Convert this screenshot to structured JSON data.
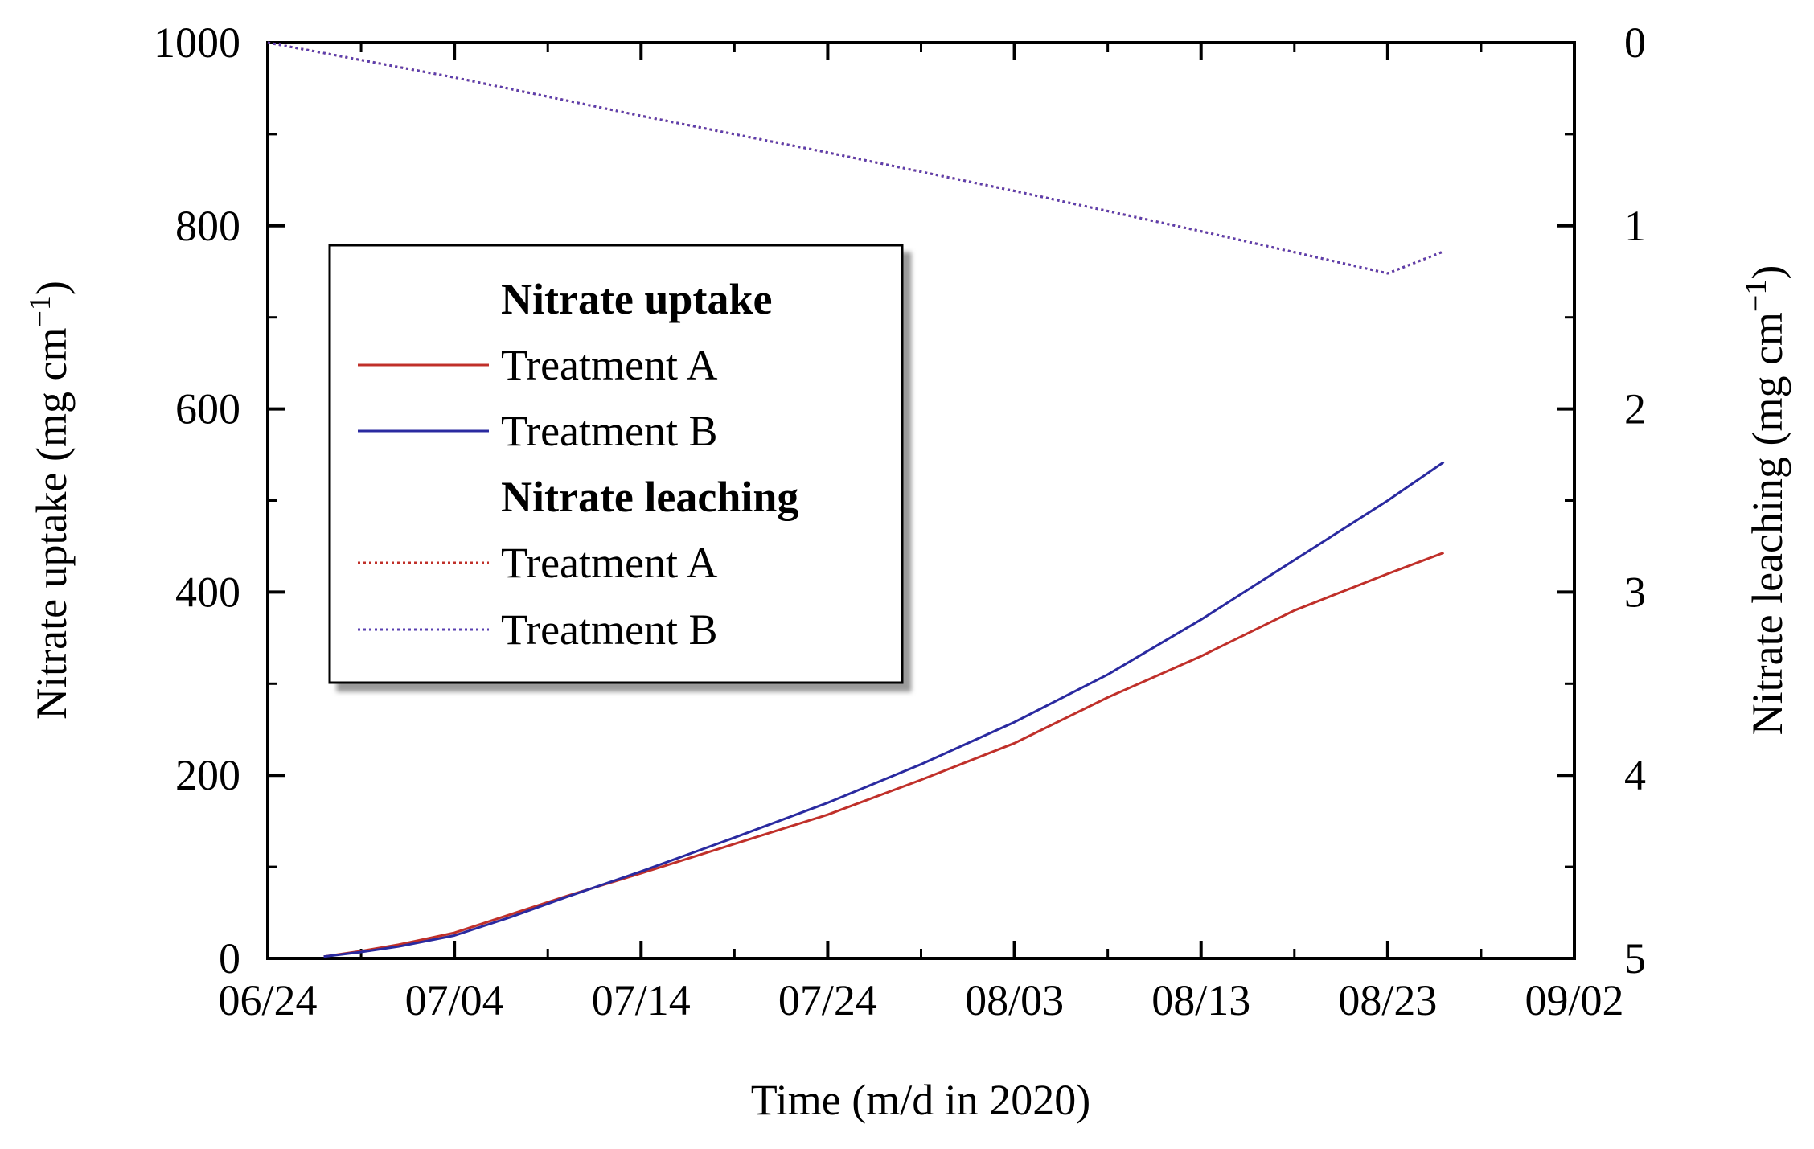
{
  "chart_data": {
    "type": "line",
    "xlabel": "Time (m/d in 2020)",
    "ylabel_left": "Nitrate uptake (mg cm",
    "ylabel_left_sup": "−1",
    "ylabel_left_close": ")",
    "ylabel_right": "Nitrate  leaching (mg cm",
    "ylabel_right_sup": "−1",
    "ylabel_right_close": ")",
    "x_range_days": [
      0,
      70
    ],
    "x_ticks": [
      {
        "day": 0,
        "label": "06/24"
      },
      {
        "day": 10,
        "label": "07/04"
      },
      {
        "day": 20,
        "label": "07/14"
      },
      {
        "day": 30,
        "label": "07/24"
      },
      {
        "day": 40,
        "label": "08/03"
      },
      {
        "day": 50,
        "label": "08/13"
      },
      {
        "day": 60,
        "label": "08/23"
      },
      {
        "day": 70,
        "label": "09/02"
      }
    ],
    "y_left_range": [
      0,
      1000
    ],
    "y_left_ticks": [
      {
        "value": 0,
        "label": "0"
      },
      {
        "value": 200,
        "label": "200"
      },
      {
        "value": 400,
        "label": "400"
      },
      {
        "value": 600,
        "label": "600"
      },
      {
        "value": 800,
        "label": "800"
      },
      {
        "value": 1000,
        "label": "1000"
      }
    ],
    "y_left_minor": [
      100,
      300,
      500,
      700,
      900
    ],
    "y_right_range_inverted": [
      0,
      5
    ],
    "y_right_ticks": [
      {
        "value": 0,
        "label": "0"
      },
      {
        "value": 1,
        "label": "1"
      },
      {
        "value": 2,
        "label": "2"
      },
      {
        "value": 3,
        "label": "3"
      },
      {
        "value": 4,
        "label": "4"
      },
      {
        "value": 5,
        "label": "5"
      }
    ],
    "y_right_minor": [
      0.5,
      1.5,
      2.5,
      3.5,
      4.5
    ],
    "x_minor": [
      5,
      15,
      25,
      35,
      45,
      55,
      65
    ],
    "series": [
      {
        "name": "Nitrate uptake Treatment A",
        "axis": "left",
        "style": "solid",
        "color": "#c0302a",
        "x": [
          3,
          5,
          7,
          10,
          13,
          16,
          20,
          25,
          30,
          35,
          40,
          45,
          50,
          55,
          60,
          63
        ],
        "y": [
          2,
          8,
          15,
          28,
          48,
          68,
          93,
          125,
          157,
          195,
          235,
          285,
          330,
          380,
          420,
          443
        ]
      },
      {
        "name": "Nitrate uptake Treatment B",
        "axis": "left",
        "style": "solid",
        "color": "#2a2aa0",
        "x": [
          3,
          5,
          7,
          10,
          13,
          16,
          20,
          25,
          30,
          35,
          40,
          45,
          50,
          55,
          60,
          63
        ],
        "y": [
          2,
          7,
          13,
          25,
          45,
          67,
          95,
          132,
          170,
          212,
          258,
          310,
          370,
          435,
          500,
          542
        ]
      },
      {
        "name": "Nitrate leaching Treatment A",
        "axis": "right",
        "style": "dotted",
        "color": "#c0302a",
        "x": [
          0,
          10,
          20,
          30,
          40,
          50,
          60,
          63
        ],
        "y": [
          0,
          0.19,
          0.4,
          0.6,
          0.81,
          1.03,
          1.26,
          1.14
        ]
      },
      {
        "name": "Nitrate leaching Treatment B",
        "axis": "right",
        "style": "dotted",
        "color": "#5a40b0",
        "x": [
          0,
          10,
          20,
          30,
          40,
          50,
          60,
          63
        ],
        "y": [
          0,
          0.19,
          0.4,
          0.6,
          0.81,
          1.03,
          1.26,
          1.14
        ]
      }
    ],
    "legend": {
      "position": "upper-left",
      "groups": [
        {
          "header": "Nitrate uptake",
          "entries": [
            {
              "label": "Treatment A",
              "style": "solid",
              "color": "#c0302a"
            },
            {
              "label": "Treatment B",
              "style": "solid",
              "color": "#2a2aa0"
            }
          ]
        },
        {
          "header": "Nitrate leaching",
          "entries": [
            {
              "label": "Treatment A",
              "style": "dotted",
              "color": "#c0302a"
            },
            {
              "label": "Treatment B",
              "style": "dotted",
              "color": "#5a40b0"
            }
          ]
        }
      ]
    }
  }
}
